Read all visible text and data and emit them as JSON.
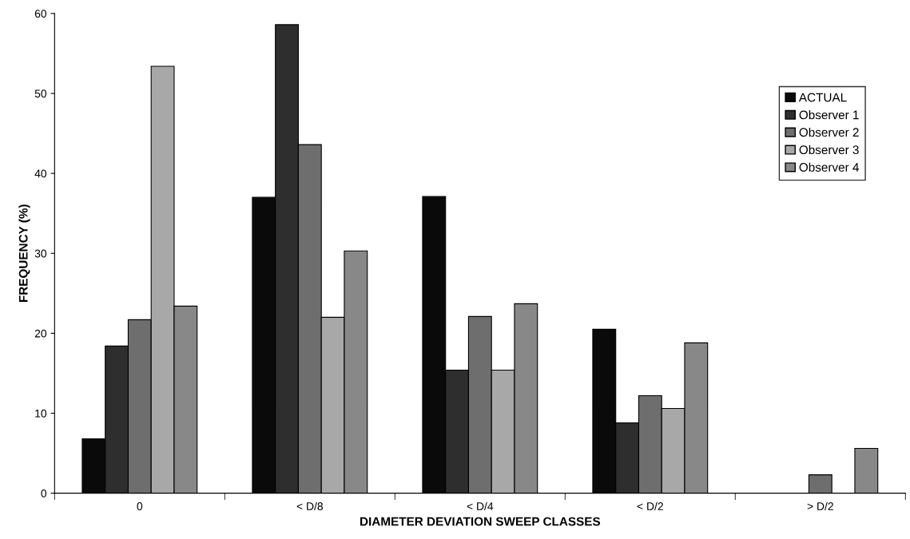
{
  "chart_data": {
    "type": "bar",
    "xlabel": "DIAMETER DEVIATION SWEEP CLASSES",
    "ylabel": "FREQUENCY (%)",
    "categories": [
      "0",
      "< D/8",
      "< D/4",
      "< D/2",
      "> D/2"
    ],
    "series": [
      {
        "name": "ACTUAL",
        "color": "#0a0a0a",
        "values": [
          6.8,
          37.0,
          37.1,
          20.5,
          null
        ]
      },
      {
        "name": "Observer 1",
        "color": "#2e2e2e",
        "values": [
          18.4,
          58.6,
          15.4,
          8.8,
          null
        ]
      },
      {
        "name": "Observer 2",
        "color": "#6e6e6e",
        "values": [
          21.7,
          43.6,
          22.1,
          12.2,
          2.3
        ]
      },
      {
        "name": "Observer 3",
        "color": "#a8a8a8",
        "values": [
          53.4,
          22.0,
          15.4,
          10.6,
          null
        ]
      },
      {
        "name": "Observer 4",
        "color": "#888888",
        "values": [
          23.4,
          30.3,
          23.7,
          18.8,
          5.6
        ]
      }
    ],
    "ylim": [
      0,
      60
    ],
    "yticks": [
      0,
      10,
      20,
      30,
      40,
      50,
      60
    ],
    "grid": false,
    "legend": "right"
  }
}
